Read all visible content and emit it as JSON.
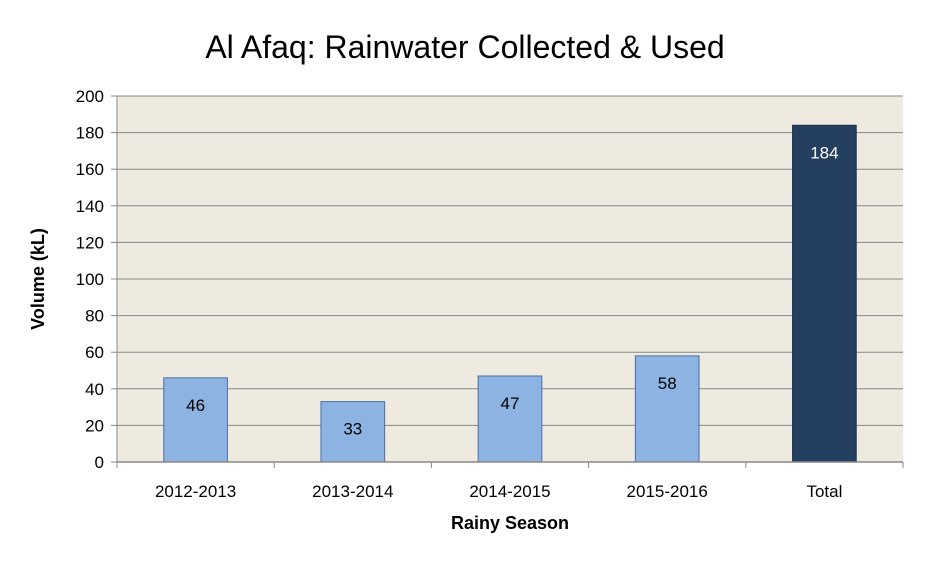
{
  "chart_data": {
    "type": "bar",
    "title": "Al Afaq: Rainwater Collected & Used",
    "xlabel": "Rainy Season",
    "ylabel": "Volume (kL)",
    "categories": [
      "2012-2013",
      "2013-2014",
      "2014-2015",
      "2015-2016",
      "Total"
    ],
    "values": [
      46,
      33,
      47,
      58,
      184
    ],
    "data_labels": [
      "46",
      "33",
      "47",
      "58",
      "184"
    ],
    "ylim": [
      0,
      200
    ],
    "yticks": [
      "0",
      "20",
      "40",
      "60",
      "80",
      "100",
      "120",
      "140",
      "160",
      "180",
      "200"
    ],
    "grid": true,
    "legend": "none",
    "colors": {
      "plot_background": "#EEEAE0",
      "gridline": "#888888",
      "bar_fill": "#8DB3E2",
      "bar_stroke": "#4A6FA5",
      "total_bar_fill": "#243F60",
      "total_bar_stroke": "#1B2F48",
      "label_dark": "#000000",
      "label_light": "#FFFFFF"
    }
  }
}
